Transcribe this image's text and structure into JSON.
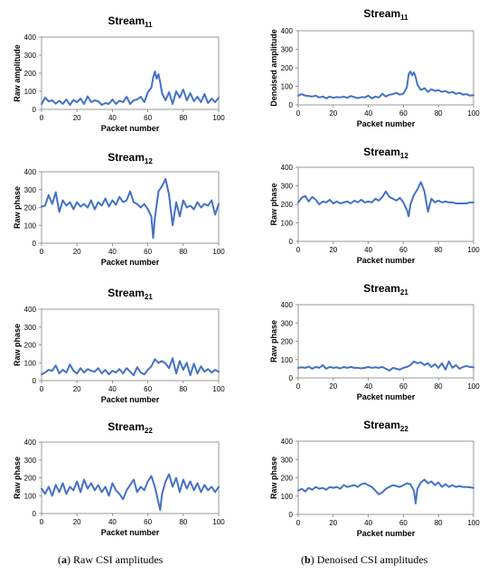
{
  "captions": [
    {
      "letter": "a",
      "text": " Raw CSI amplitudes"
    },
    {
      "letter": "b",
      "text": " Denoised CSI amplitudes"
    }
  ],
  "colors": {
    "line": "#4472C4",
    "axis": "#808080",
    "text": "#000000"
  },
  "chart_data": [
    {
      "type": "line",
      "column": "a",
      "title": "Stream",
      "title_sub": "11",
      "xlabel": "Packet number",
      "ylabel": "Raw amplitude",
      "xlim": [
        0,
        100
      ],
      "ylim": [
        0,
        400
      ],
      "xticks": [
        0,
        20,
        40,
        60,
        80,
        100
      ],
      "yticks": [
        0,
        100,
        200,
        300,
        400
      ],
      "grid": false,
      "x": [
        0,
        2,
        4,
        6,
        8,
        10,
        12,
        14,
        16,
        18,
        20,
        22,
        24,
        26,
        28,
        30,
        32,
        34,
        36,
        38,
        40,
        42,
        44,
        46,
        48,
        50,
        52,
        54,
        56,
        58,
        60,
        62,
        63,
        64,
        65,
        66,
        67,
        68,
        70,
        72,
        74,
        76,
        78,
        80,
        82,
        84,
        86,
        88,
        90,
        92,
        94,
        96,
        98,
        100
      ],
      "values": [
        30,
        65,
        45,
        50,
        32,
        48,
        30,
        55,
        25,
        52,
        40,
        60,
        30,
        72,
        40,
        50,
        45,
        25,
        35,
        30,
        55,
        30,
        48,
        40,
        70,
        30,
        50,
        55,
        70,
        40,
        95,
        120,
        175,
        210,
        170,
        195,
        150,
        90,
        50,
        95,
        30,
        100,
        65,
        110,
        50,
        90,
        45,
        70,
        40,
        85,
        35,
        60,
        40,
        65
      ]
    },
    {
      "type": "line",
      "column": "b",
      "title": "Stream",
      "title_sub": "11",
      "xlabel": "Packet number",
      "ylabel": "Denoised amplitude",
      "xlim": [
        0,
        100
      ],
      "ylim": [
        0,
        400
      ],
      "xticks": [
        0,
        20,
        40,
        60,
        80,
        100
      ],
      "yticks": [
        0,
        100,
        200,
        300,
        400
      ],
      "grid": false,
      "x": [
        0,
        2,
        4,
        6,
        8,
        10,
        12,
        14,
        16,
        18,
        20,
        22,
        24,
        26,
        28,
        30,
        32,
        34,
        36,
        38,
        40,
        42,
        44,
        46,
        48,
        50,
        52,
        54,
        56,
        58,
        60,
        62,
        63,
        64,
        65,
        66,
        67,
        68,
        70,
        72,
        74,
        76,
        78,
        80,
        82,
        84,
        86,
        88,
        90,
        92,
        94,
        96,
        98,
        100
      ],
      "values": [
        50,
        58,
        50,
        48,
        45,
        50,
        40,
        45,
        35,
        45,
        38,
        42,
        40,
        45,
        38,
        48,
        42,
        36,
        42,
        40,
        50,
        35,
        45,
        40,
        60,
        45,
        55,
        58,
        65,
        55,
        60,
        95,
        165,
        180,
        160,
        175,
        150,
        110,
        80,
        90,
        70,
        85,
        75,
        80,
        70,
        75,
        65,
        70,
        60,
        65,
        55,
        58,
        50,
        52
      ]
    },
    {
      "type": "line",
      "column": "a",
      "title": "Stream",
      "title_sub": "12",
      "xlabel": "Packet number",
      "ylabel": "Raw phase",
      "xlim": [
        0,
        100
      ],
      "ylim": [
        0,
        400
      ],
      "xticks": [
        0,
        20,
        40,
        60,
        80,
        100
      ],
      "yticks": [
        0,
        100,
        200,
        300,
        400
      ],
      "grid": false,
      "x": [
        0,
        2,
        4,
        6,
        8,
        10,
        12,
        14,
        16,
        18,
        20,
        22,
        24,
        26,
        28,
        30,
        32,
        34,
        36,
        38,
        40,
        42,
        44,
        46,
        48,
        50,
        52,
        54,
        56,
        58,
        60,
        62,
        63,
        64,
        66,
        68,
        70,
        72,
        74,
        76,
        78,
        80,
        82,
        84,
        86,
        88,
        90,
        92,
        94,
        96,
        98,
        100
      ],
      "values": [
        205,
        210,
        270,
        220,
        285,
        175,
        240,
        210,
        230,
        190,
        230,
        205,
        220,
        200,
        240,
        190,
        230,
        210,
        250,
        205,
        240,
        215,
        260,
        230,
        240,
        290,
        230,
        220,
        200,
        220,
        190,
        150,
        30,
        140,
        290,
        320,
        360,
        270,
        100,
        230,
        150,
        240,
        200,
        210,
        190,
        230,
        200,
        220,
        210,
        240,
        160,
        220
      ]
    },
    {
      "type": "line",
      "column": "b",
      "title": "Stream",
      "title_sub": "12",
      "xlabel": "Packet number",
      "ylabel": "Raw phase",
      "xlim": [
        0,
        100
      ],
      "ylim": [
        0,
        400
      ],
      "xticks": [
        0,
        20,
        40,
        60,
        80,
        100
      ],
      "yticks": [
        0,
        100,
        200,
        300,
        400
      ],
      "grid": false,
      "x": [
        0,
        2,
        4,
        6,
        8,
        10,
        12,
        14,
        16,
        18,
        20,
        22,
        24,
        26,
        28,
        30,
        32,
        34,
        36,
        38,
        40,
        42,
        44,
        46,
        48,
        50,
        52,
        54,
        56,
        58,
        60,
        62,
        63,
        64,
        66,
        68,
        70,
        72,
        74,
        76,
        78,
        80,
        82,
        84,
        86,
        88,
        90,
        92,
        94,
        96,
        98,
        100
      ],
      "values": [
        210,
        235,
        245,
        215,
        240,
        225,
        200,
        215,
        210,
        225,
        205,
        215,
        205,
        210,
        215,
        205,
        220,
        210,
        225,
        210,
        215,
        210,
        230,
        220,
        240,
        270,
        240,
        230,
        220,
        235,
        210,
        170,
        135,
        200,
        250,
        280,
        320,
        270,
        160,
        230,
        210,
        220,
        210,
        215,
        210,
        210,
        205,
        205,
        205,
        205,
        210,
        210
      ]
    },
    {
      "type": "line",
      "column": "a",
      "title": "Stream",
      "title_sub": "21",
      "xlabel": "Packet number",
      "ylabel": "Raw phase",
      "xlim": [
        0,
        100
      ],
      "ylim": [
        0,
        400
      ],
      "xticks": [
        0,
        20,
        40,
        60,
        80,
        100
      ],
      "yticks": [
        0,
        100,
        200,
        300,
        400
      ],
      "grid": false,
      "x": [
        0,
        2,
        4,
        6,
        8,
        10,
        12,
        14,
        16,
        18,
        20,
        22,
        24,
        26,
        28,
        30,
        32,
        34,
        36,
        38,
        40,
        42,
        44,
        46,
        48,
        50,
        52,
        54,
        56,
        58,
        60,
        62,
        64,
        66,
        68,
        70,
        72,
        74,
        76,
        78,
        80,
        82,
        84,
        86,
        88,
        90,
        92,
        94,
        96,
        98,
        100
      ],
      "values": [
        35,
        45,
        60,
        55,
        85,
        40,
        60,
        45,
        90,
        55,
        40,
        70,
        45,
        65,
        55,
        50,
        70,
        40,
        60,
        35,
        55,
        45,
        65,
        40,
        70,
        50,
        30,
        75,
        45,
        35,
        60,
        80,
        120,
        100,
        110,
        95,
        70,
        125,
        40,
        110,
        60,
        100,
        30,
        95,
        40,
        80,
        50,
        65,
        45,
        60,
        50
      ]
    },
    {
      "type": "line",
      "column": "b",
      "title": "Stream",
      "title_sub": "21",
      "xlabel": "Packet number",
      "ylabel": "Raw phase",
      "xlim": [
        0,
        100
      ],
      "ylim": [
        0,
        400
      ],
      "xticks": [
        0,
        20,
        40,
        60,
        80,
        100
      ],
      "yticks": [
        0,
        100,
        200,
        300,
        400
      ],
      "grid": false,
      "x": [
        0,
        2,
        4,
        6,
        8,
        10,
        12,
        14,
        16,
        18,
        20,
        22,
        24,
        26,
        28,
        30,
        32,
        34,
        36,
        38,
        40,
        42,
        44,
        46,
        48,
        50,
        52,
        54,
        56,
        58,
        60,
        62,
        64,
        66,
        68,
        70,
        72,
        74,
        76,
        78,
        80,
        82,
        84,
        86,
        88,
        90,
        92,
        94,
        96,
        98,
        100
      ],
      "values": [
        55,
        58,
        55,
        62,
        50,
        60,
        55,
        70,
        50,
        60,
        55,
        58,
        52,
        60,
        55,
        60,
        55,
        55,
        52,
        55,
        60,
        55,
        58,
        55,
        60,
        50,
        40,
        55,
        50,
        45,
        55,
        60,
        70,
        90,
        80,
        85,
        70,
        80,
        60,
        75,
        55,
        80,
        45,
        90,
        55,
        70,
        50,
        60,
        65,
        60,
        58
      ]
    },
    {
      "type": "line",
      "column": "a",
      "title": "Stream",
      "title_sub": "22",
      "xlabel": "Packet number",
      "ylabel": "Raw phase",
      "xlim": [
        0,
        100
      ],
      "ylim": [
        0,
        400
      ],
      "xticks": [
        0,
        20,
        40,
        60,
        80,
        100
      ],
      "yticks": [
        0,
        100,
        200,
        300,
        400
      ],
      "grid": false,
      "x": [
        0,
        2,
        4,
        6,
        8,
        10,
        12,
        14,
        16,
        18,
        20,
        22,
        24,
        26,
        28,
        30,
        32,
        34,
        36,
        38,
        40,
        42,
        44,
        46,
        48,
        50,
        52,
        54,
        56,
        58,
        60,
        62,
        64,
        66,
        67,
        68,
        70,
        72,
        74,
        76,
        78,
        80,
        82,
        84,
        86,
        88,
        90,
        92,
        94,
        96,
        98,
        100
      ],
      "values": [
        140,
        110,
        150,
        100,
        160,
        120,
        170,
        110,
        150,
        130,
        180,
        120,
        190,
        140,
        170,
        130,
        160,
        120,
        150,
        100,
        170,
        130,
        110,
        80,
        130,
        160,
        190,
        120,
        150,
        130,
        180,
        210,
        150,
        60,
        20,
        110,
        180,
        220,
        150,
        200,
        120,
        190,
        140,
        180,
        130,
        170,
        120,
        160,
        130,
        150,
        120,
        150
      ]
    },
    {
      "type": "line",
      "column": "b",
      "title": "Stream",
      "title_sub": "22",
      "xlabel": "Packet number",
      "ylabel": "Raw phase",
      "xlim": [
        0,
        100
      ],
      "ylim": [
        0,
        400
      ],
      "xticks": [
        0,
        20,
        40,
        60,
        80,
        100
      ],
      "yticks": [
        0,
        100,
        200,
        300,
        400
      ],
      "grid": false,
      "x": [
        0,
        2,
        4,
        6,
        8,
        10,
        12,
        14,
        16,
        18,
        20,
        22,
        24,
        26,
        28,
        30,
        32,
        34,
        36,
        38,
        40,
        42,
        44,
        46,
        48,
        50,
        52,
        54,
        56,
        58,
        60,
        62,
        64,
        66,
        67,
        68,
        70,
        72,
        74,
        76,
        78,
        80,
        82,
        84,
        86,
        88,
        90,
        92,
        94,
        96,
        98,
        100
      ],
      "values": [
        130,
        140,
        125,
        145,
        135,
        150,
        140,
        145,
        135,
        150,
        145,
        150,
        140,
        160,
        150,
        155,
        160,
        150,
        165,
        170,
        160,
        150,
        130,
        110,
        120,
        140,
        150,
        160,
        155,
        150,
        160,
        170,
        165,
        130,
        60,
        140,
        175,
        190,
        170,
        180,
        160,
        175,
        150,
        165,
        150,
        160,
        150,
        155,
        150,
        150,
        148,
        145
      ]
    }
  ]
}
